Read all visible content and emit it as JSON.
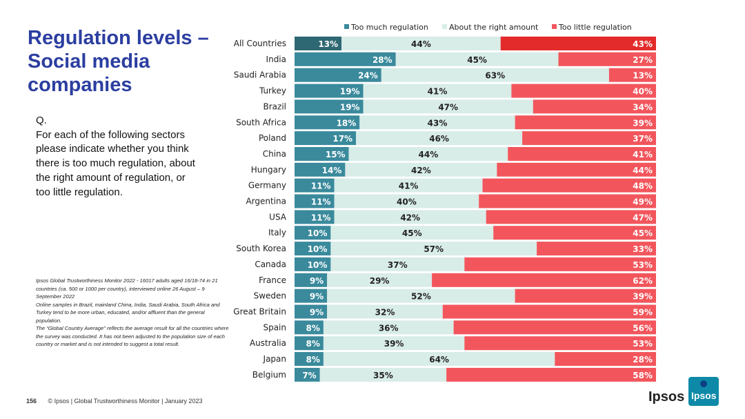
{
  "title": "Regulation levels – Social media companies",
  "question": {
    "prefix": "Q.",
    "text": "For each of the following sectors please indicate whether you think there is too much regulation, about the right amount of regulation, or too little regulation."
  },
  "notes": [
    "Ipsos Global Trustworthiness Monitor 2022 - 16017 adults aged 16/18-74 in 21 countries (ca. 500 or 1000 per country), interviewed online 26 August – 9 September 2022",
    "Online samples in Brazil, mainland China, India, Saudi Arabia, South Africa and Turkey tend to be more urban, educated, and/or affluent than the general population.",
    "The “Global Country Average” reflects the average result for all the countries where the survey was conducted. It has not been adjusted to the population size of each country or market and is not intended to suggest a total result."
  ],
  "footer": {
    "page": "156",
    "text": "© Ipsos | Global Trustworthiness Monitor | January 2023"
  },
  "brand": {
    "wordmark": "Ipsos",
    "logo_text": "Ipsos"
  },
  "chart_data": {
    "type": "bar",
    "orientation": "horizontal",
    "stacked": true,
    "percent": true,
    "categories": [
      "All Countries",
      "India",
      "Saudi Arabia",
      "Turkey",
      "Brazil",
      "South Africa",
      "Poland",
      "China",
      "Hungary",
      "Germany",
      "Argentina",
      "USA",
      "Italy",
      "South Korea",
      "Canada",
      "France",
      "Sweden",
      "Great Britain",
      "Spain",
      "Australia",
      "Japan",
      "Belgium"
    ],
    "series": [
      {
        "name": "Too much regulation",
        "color": "#3a8a9c",
        "highlight_color": "#2e6872",
        "label_color": "#ffffff",
        "values": [
          13,
          28,
          24,
          19,
          19,
          18,
          17,
          15,
          14,
          11,
          11,
          11,
          10,
          10,
          10,
          9,
          9,
          9,
          8,
          8,
          8,
          7
        ]
      },
      {
        "name": "About the right amount",
        "color": "#d8ece8",
        "label_color": "#222222",
        "values": [
          44,
          45,
          63,
          41,
          47,
          43,
          46,
          44,
          42,
          41,
          40,
          42,
          45,
          57,
          37,
          29,
          52,
          32,
          36,
          39,
          64,
          35
        ]
      },
      {
        "name": "Too little regulation",
        "color": "#f2565c",
        "highlight_color": "#e32b2b",
        "label_color": "#ffffff",
        "values": [
          43,
          27,
          13,
          40,
          34,
          39,
          37,
          41,
          44,
          48,
          49,
          47,
          45,
          33,
          53,
          62,
          39,
          59,
          56,
          53,
          28,
          58
        ]
      }
    ],
    "legend_position": "top",
    "xlim": [
      0,
      100
    ]
  }
}
